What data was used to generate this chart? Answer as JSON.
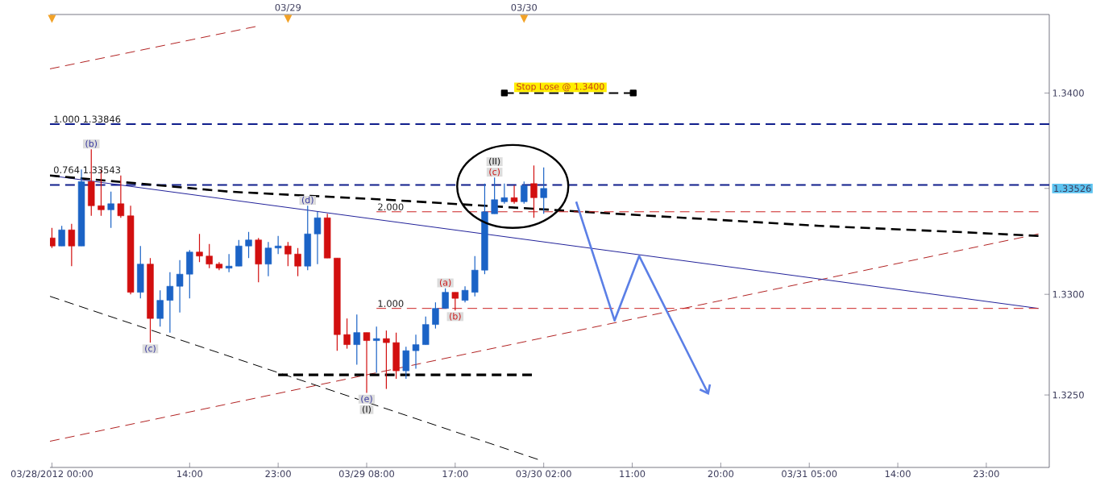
{
  "chart_data": {
    "type": "candlestick",
    "x": [
      "2012-03-28T00:00",
      "2012-03-28T01:00",
      "2012-03-28T02:00",
      "2012-03-28T03:00",
      "2012-03-28T04:00",
      "2012-03-28T05:00",
      "2012-03-28T06:00",
      "2012-03-28T07:00",
      "2012-03-28T08:00",
      "2012-03-28T09:00",
      "2012-03-28T10:00",
      "2012-03-28T11:00",
      "2012-03-28T12:00",
      "2012-03-28T13:00",
      "2012-03-28T14:00",
      "2012-03-28T15:00",
      "2012-03-28T16:00",
      "2012-03-28T17:00",
      "2012-03-28T18:00",
      "2012-03-28T19:00",
      "2012-03-28T20:00",
      "2012-03-28T21:00",
      "2012-03-28T22:00",
      "2012-03-28T23:00",
      "2012-03-29T00:00",
      "2012-03-29T01:00",
      "2012-03-29T02:00",
      "2012-03-29T03:00",
      "2012-03-29T04:00",
      "2012-03-29T05:00",
      "2012-03-29T06:00",
      "2012-03-29T07:00",
      "2012-03-29T08:00",
      "2012-03-29T09:00",
      "2012-03-29T10:00",
      "2012-03-29T11:00",
      "2012-03-29T12:00",
      "2012-03-29T13:00",
      "2012-03-29T14:00",
      "2012-03-29T15:00",
      "2012-03-29T16:00",
      "2012-03-29T17:00",
      "2012-03-29T18:00",
      "2012-03-29T19:00",
      "2012-03-29T20:00",
      "2012-03-29T21:00",
      "2012-03-29T22:00",
      "2012-03-29T23:00",
      "2012-03-30T00:00",
      "2012-03-30T01:00",
      "2012-03-30T02:00"
    ],
    "ohlc": [
      [
        1.3328,
        1.3333,
        1.3323,
        1.3324
      ],
      [
        1.3324,
        1.3334,
        1.3324,
        1.3332
      ],
      [
        1.3332,
        1.3335,
        1.3314,
        1.3324
      ],
      [
        1.3324,
        1.3362,
        1.3324,
        1.3356
      ],
      [
        1.3356,
        1.3372,
        1.3339,
        1.3344
      ],
      [
        1.3344,
        1.3362,
        1.3339,
        1.3342
      ],
      [
        1.3342,
        1.3351,
        1.3333,
        1.3345
      ],
      [
        1.3345,
        1.3359,
        1.3338,
        1.3339
      ],
      [
        1.3339,
        1.3344,
        1.33,
        1.3301
      ],
      [
        1.3301,
        1.3324,
        1.3298,
        1.3315
      ],
      [
        1.3315,
        1.3318,
        1.3276,
        1.3288
      ],
      [
        1.3288,
        1.3302,
        1.3284,
        1.3297
      ],
      [
        1.3297,
        1.3311,
        1.3281,
        1.3304
      ],
      [
        1.3304,
        1.3317,
        1.3291,
        1.331
      ],
      [
        1.331,
        1.3322,
        1.3298,
        1.3321
      ],
      [
        1.3321,
        1.333,
        1.3316,
        1.3319
      ],
      [
        1.3319,
        1.3325,
        1.3313,
        1.3315
      ],
      [
        1.3315,
        1.3316,
        1.3312,
        1.3313
      ],
      [
        1.3313,
        1.332,
        1.3311,
        1.3314
      ],
      [
        1.3314,
        1.3327,
        1.3314,
        1.3324
      ],
      [
        1.3324,
        1.3331,
        1.3318,
        1.3327
      ],
      [
        1.3327,
        1.3328,
        1.3306,
        1.3315
      ],
      [
        1.3315,
        1.3326,
        1.3309,
        1.3323
      ],
      [
        1.3323,
        1.3329,
        1.332,
        1.3324
      ],
      [
        1.3324,
        1.3326,
        1.3314,
        1.332
      ],
      [
        1.332,
        1.3323,
        1.3309,
        1.3314
      ],
      [
        1.3314,
        1.3344,
        1.3312,
        1.333
      ],
      [
        1.333,
        1.3341,
        1.3315,
        1.3338
      ],
      [
        1.3338,
        1.334,
        1.3318,
        1.3318
      ],
      [
        1.3318,
        1.3318,
        1.3272,
        1.328
      ],
      [
        1.328,
        1.3288,
        1.3273,
        1.3275
      ],
      [
        1.3275,
        1.329,
        1.3265,
        1.3281
      ],
      [
        1.3281,
        1.3281,
        1.3251,
        1.3277
      ],
      [
        1.3277,
        1.3284,
        1.3261,
        1.3278
      ],
      [
        1.3278,
        1.3282,
        1.3253,
        1.3276
      ],
      [
        1.3276,
        1.3281,
        1.3258,
        1.3262
      ],
      [
        1.3262,
        1.3274,
        1.3258,
        1.3272
      ],
      [
        1.3272,
        1.328,
        1.3263,
        1.3275
      ],
      [
        1.3275,
        1.3289,
        1.3275,
        1.3285
      ],
      [
        1.3285,
        1.3296,
        1.3283,
        1.3293
      ],
      [
        1.3293,
        1.3303,
        1.3293,
        1.3301
      ],
      [
        1.3301,
        1.3301,
        1.3292,
        1.3298
      ],
      [
        1.3297,
        1.3304,
        1.3296,
        1.3302
      ],
      [
        1.3301,
        1.3319,
        1.3299,
        1.3312
      ],
      [
        1.3312,
        1.3355,
        1.331,
        1.3341
      ],
      [
        1.334,
        1.3358,
        1.334,
        1.3347
      ],
      [
        1.3346,
        1.3355,
        1.3345,
        1.3348
      ],
      [
        1.3348,
        1.3354,
        1.3345,
        1.3346
      ],
      [
        1.3346,
        1.3356,
        1.3345,
        1.3354
      ],
      [
        1.3355,
        1.3364,
        1.3338,
        1.3348
      ],
      [
        1.3348,
        1.3363,
        1.334,
        1.33526
      ]
    ],
    "colors": [
      "#d20f0f",
      "#1b63c6",
      "#d20f0f",
      "#1b63c6",
      "#d20f0f",
      "#d20f0f",
      "#1b63c6",
      "#d20f0f",
      "#d20f0f",
      "#1b63c6",
      "#d20f0f",
      "#1b63c6",
      "#1b63c6",
      "#1b63c6",
      "#1b63c6",
      "#d20f0f",
      "#d20f0f",
      "#d20f0f",
      "#1b63c6",
      "#1b63c6",
      "#1b63c6",
      "#d20f0f",
      "#1b63c6",
      "#1b63c6",
      "#d20f0f",
      "#d20f0f",
      "#1b63c6",
      "#1b63c6",
      "#d20f0f",
      "#d20f0f",
      "#d20f0f",
      "#1b63c6",
      "#d20f0f",
      "#1b63c6",
      "#d20f0f",
      "#d20f0f",
      "#1b63c6",
      "#1b63c6",
      "#1b63c6",
      "#1b63c6",
      "#1b63c6",
      "#d20f0f",
      "#1b63c6",
      "#1b63c6",
      "#1b63c6",
      "#1b63c6",
      "#1b63c6",
      "#d20f0f",
      "#1b63c6",
      "#d20f0f",
      "#1b63c6"
    ],
    "series": [
      {
        "type": "line",
        "x": [
          "2012-03-27T23:48",
          "2012-03-28T20:42"
        ],
        "values": [
          1.3412,
          1.3433
        ],
        "color": "#b22222",
        "line_style": "dashed"
      },
      {
        "type": "line",
        "x": [
          "2012-03-27T23:48",
          "2012-04-01T04:18"
        ],
        "values": [
          1.3227,
          1.333
        ],
        "color": "#b22222",
        "line_style": "dashed"
      },
      {
        "type": "line",
        "x": [
          "2012-03-27T23:48",
          "2012-04-01T04:18"
        ],
        "values": [
          1.3359,
          1.3293
        ],
        "color": "#22229a",
        "line_style": "solid"
      },
      {
        "type": "line",
        "x": [
          "2012-03-27T23:48",
          "2012-03-30T01:24"
        ],
        "values": [
          1.3299,
          1.3218
        ],
        "color": "#000000",
        "line_style": "dashed"
      },
      {
        "type": "line",
        "x": [
          "2012-03-27T23:48",
          "2012-03-28T18:00",
          "2012-03-29T10:00",
          "2012-03-30T06:00",
          "2012-03-31T06:00",
          "2012-03-31T20:00",
          "2012-04-01T04:18"
        ],
        "values": [
          1.3359,
          1.3351,
          1.3347,
          1.3341,
          1.3334,
          1.3331,
          1.3329
        ],
        "color": "#000000",
        "line_style": "dashed"
      },
      {
        "type": "line",
        "name": "2.000",
        "x": [
          "2012-03-29T09:00",
          "2012-04-01T04:18"
        ],
        "values": [
          1.3341,
          1.3341
        ],
        "color": "#cc2222",
        "line_style": "dashed"
      },
      {
        "type": "line",
        "name": "1.000",
        "x": [
          "2012-03-29T09:00",
          "2012-04-01T04:18"
        ],
        "values": [
          1.3293,
          1.3293
        ],
        "color": "#cc2222",
        "line_style": "dashed"
      },
      {
        "type": "line",
        "x": [
          "2012-03-28T23:00",
          "2012-03-30T00:48"
        ],
        "values": [
          1.326,
          1.326
        ],
        "color": "#000000",
        "line_style": "dashed"
      },
      {
        "type": "line",
        "x": [
          "2012-03-29T22:00",
          "2012-03-30T11:06"
        ],
        "values": [
          1.34,
          1.34
        ],
        "color": "#000000",
        "line_style": "dashed",
        "marker": "square"
      }
    ],
    "ref_lines": [
      {
        "axis": "y",
        "value": 1.33846,
        "label": "1.000 1.33846",
        "color": "#101e8c",
        "line_style": "dashed"
      },
      {
        "axis": "y",
        "value": 1.33543,
        "label": "0.764 1.33543",
        "color": "#101e8c",
        "line_style": "dashed"
      }
    ],
    "annotations": [
      {
        "text": "(b)",
        "x": "2012-03-28T04:00",
        "y": 1.3372
      },
      {
        "text": "(c)",
        "x": "2012-03-28T10:00",
        "y": 1.3276
      },
      {
        "text": "(d)",
        "x": "2012-03-29T02:00",
        "y": 1.3344
      },
      {
        "text": "(e)",
        "x": "2012-03-29T08:00",
        "y": 1.3251
      },
      {
        "text": "(I)",
        "x": "2012-03-29T08:00",
        "y": 1.3251
      },
      {
        "text": "(a)",
        "x": "2012-03-29T16:00",
        "y": 1.3303
      },
      {
        "text": "(b)",
        "x": "2012-03-29T17:00",
        "y": 1.3292
      },
      {
        "text": "(c)",
        "x": "2012-03-29T21:00",
        "y": 1.3358
      },
      {
        "text": "(II)",
        "x": "2012-03-29T21:00",
        "y": 1.3358
      },
      {
        "text": "Stop Lose @ 1.3400",
        "x": "2012-03-30T03:42",
        "y": 1.34
      }
    ],
    "xlim": [
      "2012-03-27T23:48",
      "2012-04-01T05:24"
    ],
    "ylim": [
      1.3214,
      1.3439
    ],
    "xticks": [
      {
        "value": "2012-03-28T00:00",
        "label": "03/28/2012 00:00"
      },
      {
        "value": "2012-03-28T14:00",
        "label": "14:00"
      },
      {
        "value": "2012-03-28T23:00",
        "label": "23:00"
      },
      {
        "value": "2012-03-29T08:00",
        "label": "03/29 08:00"
      },
      {
        "value": "2012-03-29T17:00",
        "label": "17:00"
      },
      {
        "value": "2012-03-30T02:00",
        "label": "03/30 02:00"
      },
      {
        "value": "2012-03-30T11:00",
        "label": "11:00"
      },
      {
        "value": "2012-03-30T20:00",
        "label": "20:00"
      },
      {
        "value": "2012-03-31T05:00",
        "label": "03/31 05:00"
      },
      {
        "value": "2012-03-31T14:00",
        "label": "14:00"
      },
      {
        "value": "2012-03-31T23:00",
        "label": "23:00"
      }
    ],
    "yticks": [
      {
        "value": 1.325,
        "label": "1.3250"
      },
      {
        "value": 1.33,
        "label": "1.3300"
      },
      {
        "value": 1.33526,
        "label": "1.33526"
      },
      {
        "value": 1.34,
        "label": "1.3400"
      }
    ],
    "x2lim": [
      "2012-03-27T23:48",
      "2012-04-01T05:24"
    ],
    "x2ticks": [
      {
        "value": "2012-03-28",
        "label": null
      },
      {
        "value": "2012-03-29",
        "label": "03/29"
      },
      {
        "value": "2012-03-30",
        "label": "03/30"
      }
    ]
  }
}
